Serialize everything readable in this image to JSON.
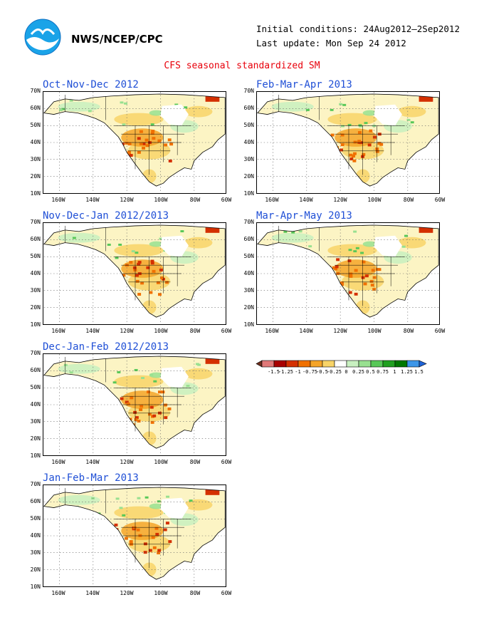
{
  "header": {
    "agency": "NWS/NCEP/CPC",
    "initial_conditions": "Initial conditions: 24Aug2012—2Sep2012",
    "last_update": "Last update: Mon Sep 24 2012",
    "logo": "noaa-logo",
    "title": "CFS seasonal standardized SM"
  },
  "axes": {
    "lat_labels": [
      "70N",
      "60N",
      "50N",
      "40N",
      "30N",
      "20N",
      "10N"
    ],
    "lon_labels": [
      "160W",
      "140W",
      "120W",
      "100W",
      "80W",
      "60W"
    ]
  },
  "panels": [
    {
      "title": "Oct-Nov-Dec 2012"
    },
    {
      "title": "Feb-Mar-Apr 2013"
    },
    {
      "title": "Nov-Dec-Jan 2012/2013"
    },
    {
      "title": "Mar-Apr-May 2013"
    },
    {
      "title": "Dec-Jan-Feb 2012/2013"
    },
    {
      "title": "Jan-Feb-Mar 2013"
    }
  ],
  "legend": {
    "labels": [
      "-1.5",
      "-1.25",
      "-1",
      "-0.75",
      "-0.5",
      "-0.25",
      "0",
      "0.25",
      "0.5",
      "0.75",
      "1",
      "1.25",
      "1.5"
    ],
    "colors": [
      "#6e2e1e",
      "#e07878",
      "#a80000",
      "#d43000",
      "#f07000",
      "#f4a428",
      "#f8d468",
      "#ffffff",
      "#c8f0c0",
      "#98e090",
      "#58c858",
      "#20a020",
      "#007800",
      "#3c96e8",
      "#1f64d8"
    ]
  },
  "colors": {
    "title_red": "#e8000b",
    "panel_title_blue": "#1f4fd6",
    "land_neutral": "#fcf4c4",
    "ocean": "#ffffff"
  }
}
